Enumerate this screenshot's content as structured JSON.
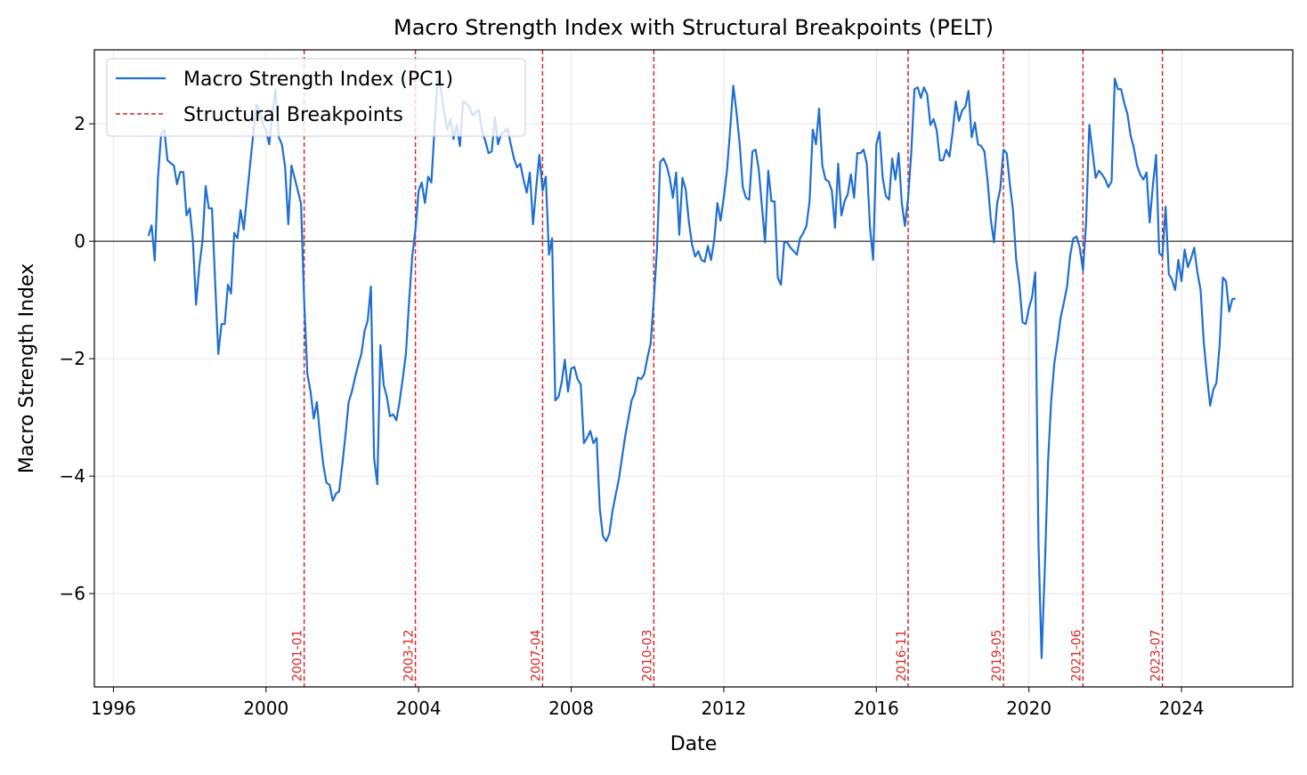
{
  "chart_data": {
    "type": "line",
    "title": "Macro Strength Index with Structural Breakpoints (PELT)",
    "xlabel": "Date",
    "ylabel": "Macro Strength Index",
    "xlim": [
      "1995-07",
      "2026-12"
    ],
    "ylim": [
      -7.59,
      3.26
    ],
    "x_ticks": [
      "1996",
      "2000",
      "2004",
      "2008",
      "2012",
      "2016",
      "2020",
      "2024"
    ],
    "y_ticks": [
      -6,
      -4,
      -2,
      0,
      2
    ],
    "y_tick_labels": [
      "−6",
      "−4",
      "−2",
      "0",
      "2"
    ],
    "grid": true,
    "zero_line": true,
    "legend_position": "upper-left",
    "colors": {
      "series": "#1f6fd1",
      "breakpoints": "#d62728",
      "zero_line": "#000000"
    },
    "legend": [
      {
        "label": "Macro Strength Index (PC1)",
        "style": "solid",
        "color": "#1f6fd1"
      },
      {
        "label": "Structural Breakpoints",
        "style": "dashed",
        "color": "#d62728"
      }
    ],
    "breakpoints": [
      "2001-01",
      "2003-12",
      "2007-04",
      "2010-03",
      "2016-11",
      "2019-05",
      "2021-06",
      "2023-07"
    ],
    "series": [
      {
        "name": "Macro Strength Index (PC1)",
        "start": "1996-12",
        "frequency": "monthly",
        "values": [
          0.09,
          0.27,
          -0.33,
          1.08,
          1.83,
          1.9,
          1.38,
          1.33,
          1.29,
          0.97,
          1.18,
          1.18,
          0.44,
          0.56,
          0,
          -1.08,
          -0.44,
          0,
          0.94,
          0.56,
          0.56,
          -0.71,
          -1.92,
          -1.41,
          -1.41,
          -0.74,
          -0.89,
          0.14,
          0.05,
          0.53,
          0.2,
          0.77,
          1.3,
          1.83,
          2.33,
          2.21,
          2.0,
          1.88,
          1.65,
          2.17,
          2.59,
          1.77,
          1.65,
          1.27,
          0.29,
          1.29,
          1.08,
          0.86,
          0.64,
          -1.0,
          -2.26,
          -2.56,
          -3.02,
          -2.74,
          -3.32,
          -3.8,
          -4.11,
          -4.15,
          -4.42,
          -4.3,
          -4.26,
          -3.8,
          -3.29,
          -2.74,
          -2.56,
          -2.32,
          -2.11,
          -1.92,
          -1.53,
          -1.35,
          -0.77,
          -3.7,
          -4.14,
          -1.77,
          -2.44,
          -2.65,
          -2.98,
          -2.95,
          -3.05,
          -2.74,
          -2.35,
          -1.92,
          -1.02,
          -0.26,
          0.2,
          0.86,
          1.0,
          0.65,
          1.1,
          1.0,
          1.9,
          2.8,
          2.59,
          2.2,
          1.9,
          2.08,
          1.74,
          1.98,
          1.62,
          2.38,
          2.35,
          2.29,
          2.14,
          2.2,
          2.23,
          1.86,
          1.71,
          1.5,
          1.53,
          2.11,
          1.65,
          1.83,
          1.86,
          1.92,
          1.65,
          1.41,
          1.26,
          1.32,
          1.05,
          0.83,
          1.17,
          0.29,
          0.92,
          1.47,
          0.86,
          1.1,
          -0.23,
          0.05,
          -2.71,
          -2.65,
          -2.41,
          -2.02,
          -2.56,
          -2.17,
          -2.14,
          -2.35,
          -2.44,
          -3.44,
          -3.35,
          -3.23,
          -3.44,
          -3.35,
          -4.56,
          -5.02,
          -5.11,
          -4.98,
          -4.59,
          -4.32,
          -4.05,
          -3.68,
          -3.32,
          -3.02,
          -2.71,
          -2.59,
          -2.32,
          -2.35,
          -2.26,
          -1.98,
          -1.74,
          -0.98,
          -0.14,
          1.35,
          1.41,
          1.29,
          1.08,
          0.74,
          1.17,
          0.11,
          1.08,
          0.89,
          0.35,
          -0.05,
          -0.26,
          -0.17,
          -0.32,
          -0.35,
          -0.08,
          -0.32,
          0.02,
          0.65,
          0.35,
          0.74,
          1.2,
          1.9,
          2.65,
          2.2,
          1.65,
          0.92,
          0.74,
          0.71,
          1.53,
          1.56,
          1.23,
          0.59,
          -0.02,
          1.2,
          0.68,
          0.68,
          -0.62,
          -0.74,
          -0.02,
          -0.02,
          -0.11,
          -0.17,
          -0.23,
          0.05,
          0.14,
          0.26,
          0.68,
          1.9,
          1.65,
          2.26,
          1.29,
          1.05,
          1.02,
          0.86,
          0.23,
          1.32,
          0.44,
          0.68,
          0.8,
          1.14,
          0.74,
          1.5,
          1.5,
          1.56,
          1.32,
          0.23,
          -0.32,
          1.65,
          1.86,
          1.08,
          0.77,
          0.71,
          1.41,
          1.05,
          1.5,
          0.65,
          0.26,
          0.74,
          1.53,
          2.59,
          2.62,
          2.44,
          2.62,
          2.5,
          1.98,
          2.08,
          1.89,
          1.38,
          1.38,
          1.56,
          1.44,
          1.86,
          2.38,
          2.05,
          2.23,
          2.29,
          2.56,
          1.77,
          2.02,
          1.65,
          1.62,
          1.53,
          1.02,
          0.38,
          -0.02,
          0.65,
          0.89,
          1.56,
          1.5,
          0.98,
          0.53,
          -0.32,
          -0.74,
          -1.38,
          -1.41,
          -1.14,
          -0.95,
          -0.53,
          -5.14,
          -7.1,
          -5.59,
          -3.77,
          -2.71,
          -2.08,
          -1.71,
          -1.29,
          -1.05,
          -0.77,
          -0.23,
          0.05,
          0.08,
          -0.11,
          -0.5,
          0.32,
          1.98,
          1.53,
          1.08,
          1.2,
          1.14,
          1.05,
          0.92,
          1.02,
          2.77,
          2.59,
          2.59,
          2.35,
          2.17,
          1.8,
          1.59,
          1.29,
          1.14,
          1.05,
          1.17,
          0.32,
          0.95,
          1.47,
          -0.2,
          -0.26,
          0.59,
          -0.56,
          -0.65,
          -0.83,
          -0.32,
          -0.68,
          -0.14,
          -0.44,
          -0.29,
          -0.11,
          -0.53,
          -0.83,
          -1.71,
          -2.29,
          -2.8,
          -2.53,
          -2.41,
          -1.77,
          -0.62,
          -0.68,
          -1.2,
          -0.98,
          -0.98
        ]
      }
    ]
  }
}
